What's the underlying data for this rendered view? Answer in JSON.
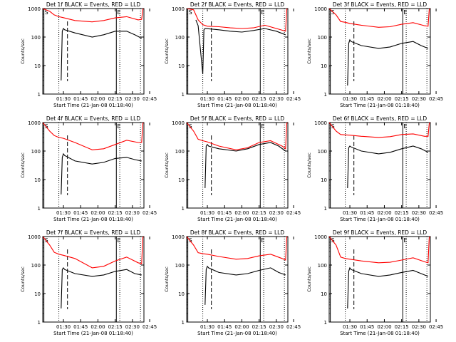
{
  "chart_data": [
    {
      "type": "line",
      "title": "Det 1f BLACK = Events, RED = LLD",
      "xlabel": "Start Time (21-Jan-08 01:18:40)",
      "ylabel": "Counts/sec",
      "y_scale": "log",
      "ylim": [
        1,
        1000
      ],
      "yticks": [
        "1",
        "10",
        "100",
        "1000"
      ],
      "xticks": [
        "01:30",
        "01:45",
        "02:00",
        "02:15",
        "02:30",
        "02:45"
      ],
      "xlim_minutes": [
        12,
        100
      ],
      "markers": [
        {
          "label": "S",
          "t": 13
        },
        {
          "label": "E",
          "t": 76
        }
      ],
      "series": [
        {
          "color": "#ff0000",
          "t": [
            12,
            18,
            22,
            26,
            30,
            40,
            55,
            65,
            75,
            85,
            95,
            98,
            99,
            99.5
          ],
          "values": [
            1000,
            800,
            600,
            520,
            480,
            380,
            340,
            380,
            470,
            520,
            400,
            420,
            900,
            1000
          ]
        },
        {
          "color": "#000000",
          "t": [
            28,
            29,
            30,
            31,
            40,
            55,
            65,
            75,
            85,
            92,
            98
          ],
          "values": [
            3,
            160,
            200,
            180,
            140,
            100,
            120,
            160,
            160,
            120,
            90
          ]
        }
      ]
    },
    {
      "type": "line",
      "title": "Det 2f BLACK = Events, RED = LLD",
      "xlabel": "Start Time (21-Jan-08 01:18:40)",
      "ylabel": "Counts/sec",
      "y_scale": "log",
      "ylim": [
        1,
        1000
      ],
      "yticks": [
        "1",
        "10",
        "100",
        "1000"
      ],
      "xticks": [
        "01:30",
        "01:45",
        "02:00",
        "02:15",
        "02:30",
        "02:45"
      ],
      "xlim_minutes": [
        12,
        100
      ],
      "markers": [
        {
          "label": "S",
          "t": 13
        },
        {
          "label": "E",
          "t": 76
        }
      ],
      "series": [
        {
          "color": "#ff0000",
          "t": [
            12,
            18,
            22,
            26,
            30,
            40,
            50,
            60,
            70,
            80,
            90,
            98,
            99,
            99.5
          ],
          "values": [
            1000,
            900,
            400,
            270,
            240,
            230,
            210,
            200,
            210,
            260,
            200,
            160,
            900,
            1000
          ]
        },
        {
          "color": "#000000",
          "t": [
            20,
            22,
            26,
            27,
            28,
            40,
            50,
            60,
            70,
            80,
            90,
            98
          ],
          "values": [
            400,
            250,
            5,
            180,
            200,
            180,
            160,
            150,
            170,
            200,
            160,
            120
          ]
        }
      ]
    },
    {
      "type": "line",
      "title": "Det 3f BLACK = Events, RED = LLD",
      "xlabel": "Start Time (21-Jan-08 01:18:40)",
      "ylabel": "Counts/sec",
      "y_scale": "log",
      "ylim": [
        1,
        1000
      ],
      "yticks": [
        "1",
        "10",
        "100",
        "1000"
      ],
      "xticks": [
        "01:30",
        "01:45",
        "02:00",
        "02:15",
        "02:30",
        "02:45"
      ],
      "xlim_minutes": [
        12,
        100
      ],
      "markers": [
        {
          "label": "S",
          "t": 13
        },
        {
          "label": "E",
          "t": 76
        }
      ],
      "series": [
        {
          "color": "#ff0000",
          "t": [
            12,
            18,
            22,
            26,
            30,
            40,
            55,
            65,
            75,
            85,
            95,
            98,
            99,
            99.5
          ],
          "values": [
            1000,
            600,
            350,
            330,
            300,
            260,
            220,
            230,
            280,
            320,
            250,
            240,
            900,
            1000
          ]
        },
        {
          "color": "#000000",
          "t": [
            28,
            29,
            30,
            31,
            40,
            55,
            65,
            75,
            85,
            92,
            98
          ],
          "values": [
            2,
            60,
            80,
            70,
            50,
            40,
            45,
            60,
            70,
            50,
            40
          ]
        }
      ]
    },
    {
      "type": "line",
      "title": "Det 4f BLACK = Events, RED = LLD",
      "xlabel": "Start Time (21-Jan-08 01:18:40)",
      "ylabel": "Counts/sec",
      "y_scale": "log",
      "ylim": [
        1,
        1000
      ],
      "yticks": [
        "1",
        "10",
        "100",
        "1000"
      ],
      "xticks": [
        "01:30",
        "01:45",
        "02:00",
        "02:15",
        "02:30",
        "02:45"
      ],
      "xlim_minutes": [
        12,
        100
      ],
      "markers": [
        {
          "label": "S",
          "t": 13
        },
        {
          "label": "E",
          "t": 76
        }
      ],
      "series": [
        {
          "color": "#ff0000",
          "t": [
            12,
            18,
            22,
            26,
            30,
            40,
            55,
            65,
            75,
            85,
            95,
            98,
            99,
            99.5
          ],
          "values": [
            1000,
            500,
            350,
            300,
            280,
            200,
            110,
            120,
            170,
            240,
            200,
            200,
            900,
            1000
          ]
        },
        {
          "color": "#000000",
          "t": [
            28,
            29,
            30,
            31,
            40,
            55,
            65,
            75,
            85,
            92,
            98
          ],
          "values": [
            3,
            60,
            80,
            70,
            45,
            35,
            40,
            55,
            60,
            50,
            45
          ]
        }
      ]
    },
    {
      "type": "line",
      "title": "Det 5f BLACK = Events, RED = LLD",
      "xlabel": "Start Time (21-Jan-08 01:18:40)",
      "ylabel": "Counts/sec",
      "y_scale": "log",
      "ylim": [
        1,
        1000
      ],
      "yticks": [
        "1",
        "10",
        "100",
        "1000"
      ],
      "xticks": [
        "01:30",
        "01:45",
        "02:00",
        "02:15",
        "02:30",
        "02:45"
      ],
      "xlim_minutes": [
        12,
        100
      ],
      "markers": [
        {
          "label": "S",
          "t": 13
        },
        {
          "label": "E",
          "t": 76
        }
      ],
      "series": [
        {
          "color": "#ff0000",
          "t": [
            12,
            18,
            22,
            26,
            30,
            40,
            55,
            65,
            75,
            85,
            95,
            98,
            99,
            99.5
          ],
          "values": [
            1000,
            500,
            260,
            230,
            210,
            150,
            110,
            130,
            200,
            230,
            150,
            120,
            900,
            1000
          ]
        },
        {
          "color": "#000000",
          "t": [
            28,
            29,
            30,
            31,
            40,
            55,
            65,
            75,
            85,
            92,
            98
          ],
          "values": [
            5,
            150,
            170,
            150,
            120,
            100,
            120,
            170,
            200,
            150,
            100
          ]
        }
      ]
    },
    {
      "type": "line",
      "title": "Det 6f BLACK = Events, RED = LLD",
      "xlabel": "Start Time (21-Jan-08 01:18:40)",
      "ylabel": "Counts/sec",
      "y_scale": "log",
      "ylim": [
        1,
        1000
      ],
      "yticks": [
        "1",
        "10",
        "100",
        "1000"
      ],
      "xticks": [
        "01:30",
        "01:45",
        "02:00",
        "02:15",
        "02:30",
        "02:45"
      ],
      "xlim_minutes": [
        12,
        100
      ],
      "markers": [
        {
          "label": "S",
          "t": 13
        },
        {
          "label": "E",
          "t": 76
        }
      ],
      "series": [
        {
          "color": "#ff0000",
          "t": [
            12,
            18,
            22,
            26,
            30,
            40,
            55,
            65,
            75,
            85,
            95,
            98,
            99,
            99.5
          ],
          "values": [
            1000,
            500,
            380,
            370,
            360,
            330,
            300,
            320,
            380,
            400,
            330,
            330,
            900,
            1000
          ]
        },
        {
          "color": "#000000",
          "t": [
            28,
            29,
            30,
            31,
            40,
            55,
            65,
            75,
            85,
            92,
            98
          ],
          "values": [
            5,
            130,
            150,
            140,
            100,
            80,
            90,
            120,
            150,
            120,
            90
          ]
        }
      ]
    },
    {
      "type": "line",
      "title": "Det 7f BLACK = Events, RED = LLD",
      "xlabel": "Start Time (21-Jan-08 01:18:40)",
      "ylabel": "Counts/sec",
      "y_scale": "log",
      "ylim": [
        1,
        1000
      ],
      "yticks": [
        "1",
        "10",
        "100",
        "1000"
      ],
      "xticks": [
        "01:30",
        "01:45",
        "02:00",
        "02:15",
        "02:30",
        "02:45"
      ],
      "xlim_minutes": [
        12,
        100
      ],
      "markers": [
        {
          "label": "S",
          "t": 13
        },
        {
          "label": "E",
          "t": 76
        }
      ],
      "series": [
        {
          "color": "#ff0000",
          "t": [
            12,
            18,
            22,
            26,
            30,
            40,
            55,
            65,
            75,
            85,
            95,
            98,
            99,
            99.5
          ],
          "values": [
            1000,
            500,
            280,
            240,
            220,
            170,
            80,
            90,
            140,
            190,
            120,
            110,
            900,
            1000
          ]
        },
        {
          "color": "#000000",
          "t": [
            28,
            29,
            30,
            31,
            40,
            55,
            65,
            75,
            85,
            92,
            98
          ],
          "values": [
            3,
            70,
            80,
            70,
            50,
            40,
            45,
            60,
            70,
            50,
            45
          ]
        }
      ]
    },
    {
      "type": "line",
      "title": "Det 8f BLACK = Events, RED = LLD",
      "xlabel": "Start Time (21-Jan-08 01:18:40)",
      "ylabel": "Counts/sec",
      "y_scale": "log",
      "ylim": [
        1,
        1000
      ],
      "yticks": [
        "1",
        "10",
        "100",
        "1000"
      ],
      "xticks": [
        "01:30",
        "01:45",
        "02:00",
        "02:15",
        "02:30",
        "02:45"
      ],
      "xlim_minutes": [
        12,
        100
      ],
      "markers": [
        {
          "label": "S",
          "t": 13
        },
        {
          "label": "E",
          "t": 76
        }
      ],
      "series": [
        {
          "color": "#ff0000",
          "t": [
            12,
            18,
            22,
            26,
            30,
            40,
            55,
            65,
            75,
            85,
            95,
            98,
            99,
            99.5
          ],
          "values": [
            1000,
            500,
            270,
            250,
            240,
            200,
            160,
            170,
            210,
            240,
            170,
            150,
            900,
            1000
          ]
        },
        {
          "color": "#000000",
          "t": [
            28,
            29,
            30,
            31,
            40,
            55,
            65,
            75,
            85,
            92,
            98
          ],
          "values": [
            4,
            70,
            90,
            80,
            55,
            45,
            50,
            65,
            80,
            55,
            45
          ]
        }
      ]
    },
    {
      "type": "line",
      "title": "Det 9f BLACK = Events, RED = LLD",
      "xlabel": "Start Time (21-Jan-08 01:18:40)",
      "ylabel": "Counts/sec",
      "y_scale": "log",
      "ylim": [
        1,
        1000
      ],
      "yticks": [
        "1",
        "10",
        "100",
        "1000"
      ],
      "xticks": [
        "01:30",
        "01:45",
        "02:00",
        "02:15",
        "02:30",
        "02:45"
      ],
      "xlim_minutes": [
        12,
        100
      ],
      "markers": [
        {
          "label": "S",
          "t": 13
        },
        {
          "label": "E",
          "t": 76
        }
      ],
      "series": [
        {
          "color": "#ff0000",
          "t": [
            12,
            18,
            22,
            26,
            30,
            40,
            55,
            65,
            75,
            85,
            95,
            98,
            99,
            99.5
          ],
          "values": [
            1000,
            500,
            190,
            170,
            160,
            140,
            120,
            125,
            150,
            180,
            130,
            120,
            900,
            1000
          ]
        },
        {
          "color": "#000000",
          "t": [
            28,
            29,
            30,
            31,
            40,
            55,
            65,
            75,
            85,
            92,
            98
          ],
          "values": [
            3,
            60,
            80,
            70,
            50,
            40,
            45,
            55,
            65,
            50,
            40
          ]
        }
      ]
    }
  ]
}
